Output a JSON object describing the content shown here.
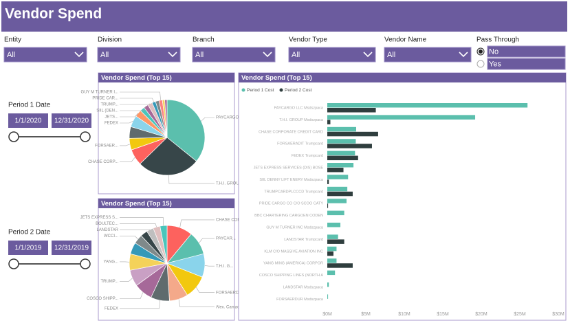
{
  "header": {
    "title": "Vendor Spend"
  },
  "filters": [
    {
      "label": "Entity",
      "value": "All"
    },
    {
      "label": "Division",
      "value": "All"
    },
    {
      "label": "Branch",
      "value": "All"
    },
    {
      "label": "Vendor Type",
      "value": "All"
    },
    {
      "label": "Vendor Name",
      "value": "All"
    }
  ],
  "pass_through": {
    "label": "Pass Through",
    "options": [
      "No",
      "Yes"
    ],
    "selected": 0
  },
  "periods": [
    {
      "label": "Period 1 Date",
      "start": "1/1/2020",
      "end": "12/31/2020"
    },
    {
      "label": "Period 2 Date",
      "start": "1/1/2019",
      "end": "12/31/2019"
    }
  ],
  "chart_data": [
    {
      "type": "pie",
      "title": "Vendor Spend (Top 15)",
      "categories": [
        "PAYCARGO LLC",
        "T.H.I. GROUP",
        "CHASE CORP...",
        "FORSAER...",
        null,
        "FEDEX",
        "JETS...",
        null,
        "SIIL (DEN...",
        "TRUMP...",
        "PRIDE CAR...",
        null,
        "GUY M TURNER I...",
        null,
        null
      ],
      "values": [
        36,
        27,
        7,
        5,
        5,
        5,
        3,
        2,
        2,
        2,
        1.5,
        1.5,
        1.5,
        1,
        1
      ],
      "colors": [
        "#5bbfad",
        "#374649",
        "#fd625e",
        "#f2c80f",
        "#5f6b6d",
        "#8ad4eb",
        "#fe9666",
        "#4ac5bb",
        "#a66999",
        "#dfbfbf",
        "#3599b8",
        "#7f898a",
        "#fb8281",
        "#f4d25a",
        "#a66999"
      ]
    },
    {
      "type": "pie",
      "title": "Vendor Spend (Top 15)",
      "categories": [
        "CHASE CORPORATE C...",
        "PAYCAR...",
        "T.H.I. G...",
        "FORSAERDUR",
        "Alex. Camacho",
        "FEDEX",
        "COSCO SHIPP...",
        "TRUMP...",
        "YANG...",
        null,
        "WCCI...",
        null,
        "LANDSTAR",
        "BOULTEC...",
        "JETS EXPRESS S..."
      ],
      "values": [
        11,
        10,
        10,
        10,
        8,
        8,
        8,
        7,
        7,
        5,
        4,
        3,
        3,
        3,
        3
      ],
      "colors": [
        "#fd625e",
        "#5bbfad",
        "#8ad4eb",
        "#f2c80f",
        "#f4a98a",
        "#5f6b6d",
        "#a66999",
        "#c9a0c4",
        "#f4d25a",
        "#3599b8",
        "#7f898a",
        "#374649",
        "#bfbfbf",
        "#dfbfbf",
        "#4ac5bb"
      ]
    },
    {
      "type": "bar",
      "orientation": "horizontal",
      "title": "Vendor Spend (Top 15)",
      "categories": [
        "PAYCARGO LLC Msdszpaca",
        "T.H.I. GROUP Msdszpaca",
        "CHASE CORPORATE CREDIT CARD",
        "FORSAERADIT Trumpcard",
        "FEDEX Trumpcard",
        "JETS EXPRESS SERVICES (DIS) BOSE",
        "SIIL DENNY LIFT ENERY Msdszpaca",
        "TRUMPCARDPLCCCD Trumpcard",
        "PRIDE CARGO CO C/O SCOO CATY",
        "BBC CHARTERING CARGOEN CODEN",
        "GUY M TURNER INC Msdszpaca",
        "LANDSTAR Trumpcard",
        "KLM C/O MASSIVE AVIATION INC",
        "YANG MING (AMERICA) CORPOR",
        "COSCO SHIPPING LINES (NORTH A",
        "LANDSTAR Msdszpaca",
        "FORSAERDUR Msdszpaca"
      ],
      "series": [
        {
          "name": "Period 1 Cost",
          "color": "#5bbfad",
          "values": [
            26000000,
            19200000,
            3750000,
            3700000,
            3600000,
            3400000,
            2700000,
            2600000,
            2500000,
            2200000,
            1700000,
            1400000,
            1200000,
            1200000,
            1000000,
            200000,
            100000
          ]
        },
        {
          "name": "Period 2 Cost",
          "color": "#2f3e3e",
          "values": [
            6300000,
            400000,
            6600000,
            5800000,
            4000000,
            2100000,
            200000,
            3300000,
            100000,
            0,
            0,
            2200000,
            800000,
            3300000,
            0,
            0,
            0
          ]
        }
      ],
      "xlim": [
        0,
        30000000
      ],
      "xticks": [
        {
          "value": 0,
          "label": "$0M"
        },
        {
          "value": 5000000,
          "label": "$5M"
        },
        {
          "value": 10000000,
          "label": "$10M"
        },
        {
          "value": 15000000,
          "label": "$15M"
        },
        {
          "value": 20000000,
          "label": "$20M"
        },
        {
          "value": 25000000,
          "label": "$25M"
        },
        {
          "value": 30000000,
          "label": "$30M"
        }
      ],
      "legend": "top-left"
    }
  ]
}
